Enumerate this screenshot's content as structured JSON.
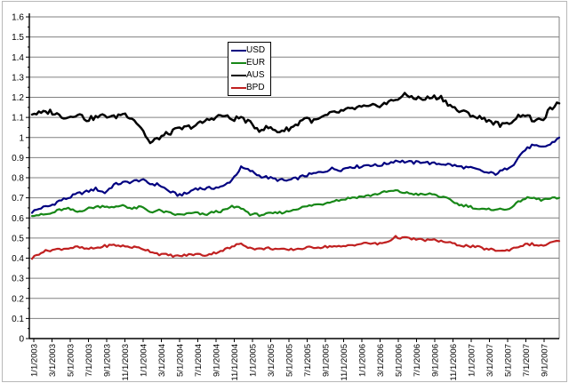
{
  "chart_data": {
    "type": "line",
    "title": "",
    "xlabel": "",
    "ylabel": "",
    "ylim": [
      0,
      1.6
    ],
    "y_tick_step": 0.1,
    "y_tick_labels": [
      "1.6",
      "1.5",
      "1.4",
      "1.3",
      "1.2",
      "1.1",
      "1",
      "0.9",
      "0.8",
      "0.7",
      "0.6",
      "0.5",
      "0.4",
      "0.3",
      "0.2",
      "0.1",
      "0"
    ],
    "x_tick_labels": [
      "1/1/2003",
      "3/1/2003",
      "5/1/2003",
      "7/1/2003",
      "9/1/2003",
      "11/1/2003",
      "1/1/2004",
      "3/1/2004",
      "5/1/2004",
      "7/1/2004",
      "9/1/2004",
      "11/1/2004",
      "1/1/2005",
      "3/1/2005",
      "5/1/2005",
      "7/1/2005",
      "9/1/2005",
      "11/1/2005",
      "1/1/2006",
      "3/1/2006",
      "5/1/2006",
      "7/1/2006",
      "9/1/2006",
      "11/1/2006",
      "1/1/2007",
      "3/1/2007",
      "5/1/2007",
      "7/1/2007",
      "9/1/2007"
    ],
    "grid": "horizontal",
    "legend_position": "upper-center-left",
    "sampling_note": "series values are monthly estimates read from the plot, Jan 2003 through Nov 2007",
    "series": [
      {
        "name": "USD",
        "color": "#000080",
        "values": [
          0.63,
          0.65,
          0.66,
          0.685,
          0.7,
          0.72,
          0.73,
          0.745,
          0.725,
          0.765,
          0.775,
          0.78,
          0.79,
          0.77,
          0.765,
          0.735,
          0.715,
          0.72,
          0.748,
          0.745,
          0.75,
          0.755,
          0.79,
          0.85,
          0.835,
          0.81,
          0.8,
          0.79,
          0.785,
          0.795,
          0.81,
          0.82,
          0.83,
          0.845,
          0.84,
          0.855,
          0.855,
          0.865,
          0.86,
          0.87,
          0.885,
          0.88,
          0.875,
          0.88,
          0.87,
          0.87,
          0.865,
          0.855,
          0.85,
          0.84,
          0.825,
          0.82,
          0.84,
          0.87,
          0.93,
          0.96,
          0.95,
          0.965,
          1.0
        ]
      },
      {
        "name": "EUR",
        "color": "#178717",
        "values": [
          0.615,
          0.615,
          0.62,
          0.64,
          0.645,
          0.63,
          0.645,
          0.655,
          0.66,
          0.65,
          0.665,
          0.645,
          0.655,
          0.63,
          0.637,
          0.625,
          0.615,
          0.62,
          0.625,
          0.615,
          0.63,
          0.635,
          0.655,
          0.65,
          0.62,
          0.615,
          0.62,
          0.625,
          0.63,
          0.645,
          0.655,
          0.665,
          0.67,
          0.685,
          0.69,
          0.7,
          0.705,
          0.71,
          0.72,
          0.73,
          0.735,
          0.725,
          0.72,
          0.715,
          0.72,
          0.705,
          0.69,
          0.665,
          0.66,
          0.645,
          0.64,
          0.645,
          0.64,
          0.66,
          0.695,
          0.7,
          0.69,
          0.695,
          0.7
        ]
      },
      {
        "name": "AUS",
        "color": "#000000",
        "values": [
          1.12,
          1.12,
          1.13,
          1.11,
          1.1,
          1.12,
          1.09,
          1.1,
          1.11,
          1.1,
          1.12,
          1.1,
          1.05,
          0.97,
          1.0,
          1.02,
          1.04,
          1.05,
          1.06,
          1.08,
          1.1,
          1.11,
          1.09,
          1.1,
          1.07,
          1.04,
          1.05,
          1.03,
          1.04,
          1.06,
          1.1,
          1.08,
          1.1,
          1.12,
          1.13,
          1.14,
          1.15,
          1.15,
          1.16,
          1.17,
          1.19,
          1.21,
          1.2,
          1.19,
          1.2,
          1.2,
          1.16,
          1.13,
          1.12,
          1.1,
          1.09,
          1.07,
          1.06,
          1.09,
          1.12,
          1.09,
          1.08,
          1.14,
          1.17
        ]
      },
      {
        "name": "BPD",
        "color": "#c02020",
        "values": [
          0.4,
          0.43,
          0.44,
          0.445,
          0.45,
          0.455,
          0.445,
          0.45,
          0.46,
          0.465,
          0.46,
          0.455,
          0.45,
          0.435,
          0.42,
          0.415,
          0.41,
          0.415,
          0.42,
          0.415,
          0.425,
          0.44,
          0.455,
          0.475,
          0.45,
          0.445,
          0.45,
          0.445,
          0.44,
          0.445,
          0.45,
          0.455,
          0.455,
          0.46,
          0.455,
          0.465,
          0.47,
          0.475,
          0.47,
          0.48,
          0.505,
          0.5,
          0.495,
          0.49,
          0.49,
          0.485,
          0.475,
          0.465,
          0.46,
          0.455,
          0.445,
          0.44,
          0.435,
          0.45,
          0.465,
          0.47,
          0.46,
          0.475,
          0.485
        ]
      }
    ],
    "colors": {
      "gridline": "#808080",
      "axis": "#000000",
      "plot_border": "#808080",
      "background": "#ffffff"
    }
  }
}
